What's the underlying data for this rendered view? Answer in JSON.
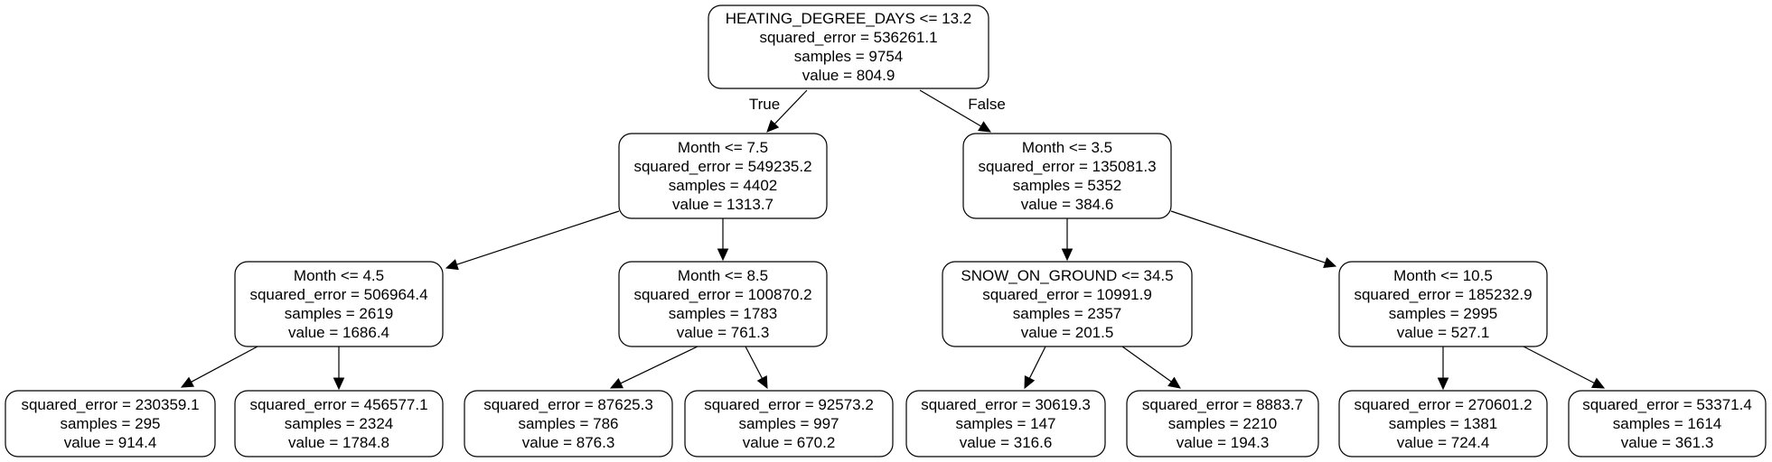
{
  "tree": {
    "nodes": [
      {
        "id": "n0",
        "lines": [
          "HEATING_DEGREE_DAYS <= 13.2",
          "squared_error = 536261.1",
          "samples = 9754",
          "value = 804.9"
        ]
      },
      {
        "id": "n1",
        "lines": [
          "Month <= 7.5",
          "squared_error = 549235.2",
          "samples = 4402",
          "value = 1313.7"
        ]
      },
      {
        "id": "n2",
        "lines": [
          "Month <= 3.5",
          "squared_error = 135081.3",
          "samples = 5352",
          "value = 384.6"
        ]
      },
      {
        "id": "n3",
        "lines": [
          "Month <= 4.5",
          "squared_error = 506964.4",
          "samples = 2619",
          "value = 1686.4"
        ]
      },
      {
        "id": "n4",
        "lines": [
          "Month <= 8.5",
          "squared_error = 100870.2",
          "samples = 1783",
          "value = 761.3"
        ]
      },
      {
        "id": "n5",
        "lines": [
          "SNOW_ON_GROUND <= 34.5",
          "squared_error = 10991.9",
          "samples = 2357",
          "value = 201.5"
        ]
      },
      {
        "id": "n6",
        "lines": [
          "Month <= 10.5",
          "squared_error = 185232.9",
          "samples = 2995",
          "value = 527.1"
        ]
      },
      {
        "id": "n7",
        "lines": [
          "squared_error = 230359.1",
          "samples = 295",
          "value = 914.4"
        ]
      },
      {
        "id": "n8",
        "lines": [
          "squared_error = 456577.1",
          "samples = 2324",
          "value = 1784.8"
        ]
      },
      {
        "id": "n9",
        "lines": [
          "squared_error = 87625.3",
          "samples = 786",
          "value = 876.3"
        ]
      },
      {
        "id": "n10",
        "lines": [
          "squared_error = 92573.2",
          "samples = 997",
          "value = 670.2"
        ]
      },
      {
        "id": "n11",
        "lines": [
          "squared_error = 30619.3",
          "samples = 147",
          "value = 316.6"
        ]
      },
      {
        "id": "n12",
        "lines": [
          "squared_error = 8883.7",
          "samples = 2210",
          "value = 194.3"
        ]
      },
      {
        "id": "n13",
        "lines": [
          "squared_error = 270601.2",
          "samples = 1381",
          "value = 724.4"
        ]
      },
      {
        "id": "n14",
        "lines": [
          "squared_error = 53371.4",
          "samples = 1614",
          "value = 361.3"
        ]
      }
    ],
    "edges": [
      {
        "from": "n0",
        "to": "n1",
        "label": "True"
      },
      {
        "from": "n0",
        "to": "n2",
        "label": "False"
      },
      {
        "from": "n1",
        "to": "n3",
        "label": ""
      },
      {
        "from": "n1",
        "to": "n4",
        "label": ""
      },
      {
        "from": "n2",
        "to": "n5",
        "label": ""
      },
      {
        "from": "n2",
        "to": "n6",
        "label": ""
      },
      {
        "from": "n3",
        "to": "n7",
        "label": ""
      },
      {
        "from": "n3",
        "to": "n8",
        "label": ""
      },
      {
        "from": "n4",
        "to": "n9",
        "label": ""
      },
      {
        "from": "n4",
        "to": "n10",
        "label": ""
      },
      {
        "from": "n5",
        "to": "n11",
        "label": ""
      },
      {
        "from": "n5",
        "to": "n12",
        "label": ""
      },
      {
        "from": "n6",
        "to": "n13",
        "label": ""
      },
      {
        "from": "n6",
        "to": "n14",
        "label": ""
      }
    ]
  }
}
